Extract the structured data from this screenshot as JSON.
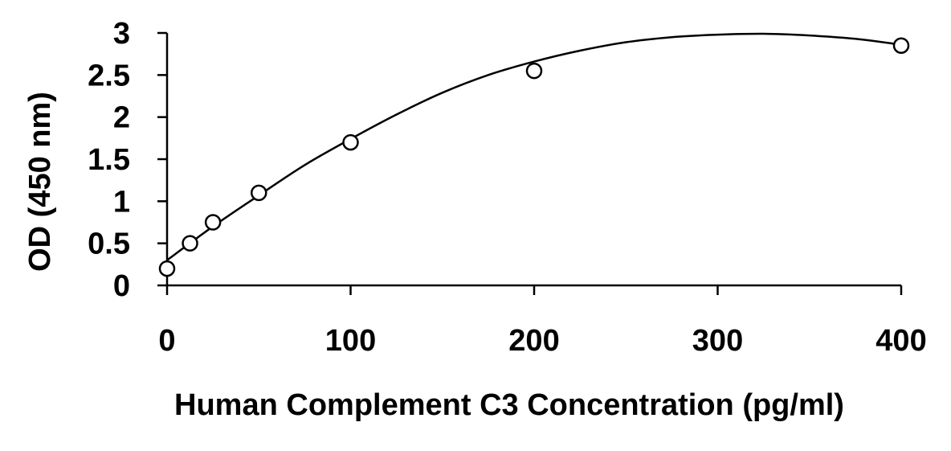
{
  "chart_data": {
    "type": "scatter",
    "title": "",
    "xlabel": "Human Complement C3 Concentration (pg/ml)",
    "ylabel": "OD (450 nm)",
    "xlim": [
      0,
      400
    ],
    "ylim": [
      0,
      3
    ],
    "xticks": [
      0,
      100,
      200,
      300,
      400
    ],
    "xtick_labels": [
      "0",
      "100",
      "200",
      "300",
      "400"
    ],
    "yticks": [
      0,
      0.5,
      1,
      1.5,
      2,
      2.5,
      3
    ],
    "ytick_labels": [
      "0",
      "0.5",
      "1",
      "1.5",
      "2",
      "2.5",
      "3"
    ],
    "grid": false,
    "legend": "none",
    "series": [
      {
        "x": [
          0,
          12.5,
          25,
          50,
          100,
          200,
          400
        ],
        "y": [
          0.2,
          0.5,
          0.75,
          1.1,
          1.7,
          2.55,
          2.85
        ],
        "marker": "open-circle",
        "color": "#000000"
      }
    ],
    "trendline": {
      "kind": "polynomial-fit",
      "color": "#000000",
      "x": [
        0,
        25,
        50,
        75,
        100,
        125,
        150,
        175,
        200,
        225,
        250,
        275,
        300,
        325,
        350,
        375,
        400
      ],
      "y": [
        0.3,
        0.7,
        1.07,
        1.43,
        1.74,
        2.03,
        2.29,
        2.5,
        2.66,
        2.79,
        2.89,
        2.95,
        2.98,
        2.99,
        2.97,
        2.93,
        2.86
      ]
    }
  }
}
